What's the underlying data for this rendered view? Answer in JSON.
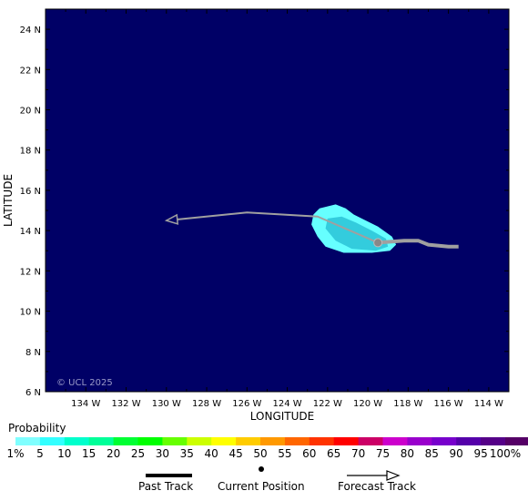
{
  "map": {
    "ocean_color": "#000066",
    "credit": "© UCL 2025",
    "xlabel": "LONGITUDE",
    "ylabel": "LATITUDE",
    "lon_ticks": [
      "134 W",
      "132 W",
      "130 W",
      "128 W",
      "126 W",
      "124 W",
      "122 W",
      "120 W",
      "118 W",
      "116 W",
      "114 W"
    ],
    "lat_ticks": [
      "24 N",
      "22 N",
      "20 N",
      "18 N",
      "16 N",
      "14 N",
      "12 N",
      "10 N",
      "8 N",
      "6 N"
    ],
    "past_track": [
      [
        -119.5,
        13.4
      ],
      [
        -118.2,
        13.5
      ],
      [
        -117.5,
        13.5
      ],
      [
        -117.0,
        13.3
      ],
      [
        -116.0,
        13.2
      ],
      [
        -115.5,
        13.2
      ]
    ],
    "forecast_track": [
      [
        -119.5,
        13.4
      ],
      [
        -122.5,
        14.7
      ],
      [
        -126.0,
        14.9
      ],
      [
        -130.0,
        14.5
      ]
    ],
    "current_position": [
      -119.5,
      13.4
    ],
    "probability_region": {
      "outer_color": "#66ffff",
      "inner_color": "#33ccdd"
    }
  },
  "legend": {
    "title": "Probability",
    "labels": [
      "1%",
      "5",
      "10",
      "15",
      "20",
      "25",
      "30",
      "35",
      "40",
      "45",
      "50",
      "55",
      "60",
      "65",
      "70",
      "75",
      "80",
      "85",
      "90",
      "95",
      "100%"
    ],
    "colors": [
      "#80ffff",
      "#33ffff",
      "#00ffcc",
      "#00ff99",
      "#00ff33",
      "#00ff00",
      "#66ff00",
      "#ccff00",
      "#ffff00",
      "#ffcc00",
      "#ff9900",
      "#ff6600",
      "#ff3300",
      "#ff0000",
      "#cc0066",
      "#cc00cc",
      "#9900cc",
      "#7700cc",
      "#5500aa",
      "#550088",
      "#550066"
    ]
  },
  "key": {
    "past_track": "Past Track",
    "current_position": "Current Position",
    "forecast_track": "Forecast Track"
  }
}
